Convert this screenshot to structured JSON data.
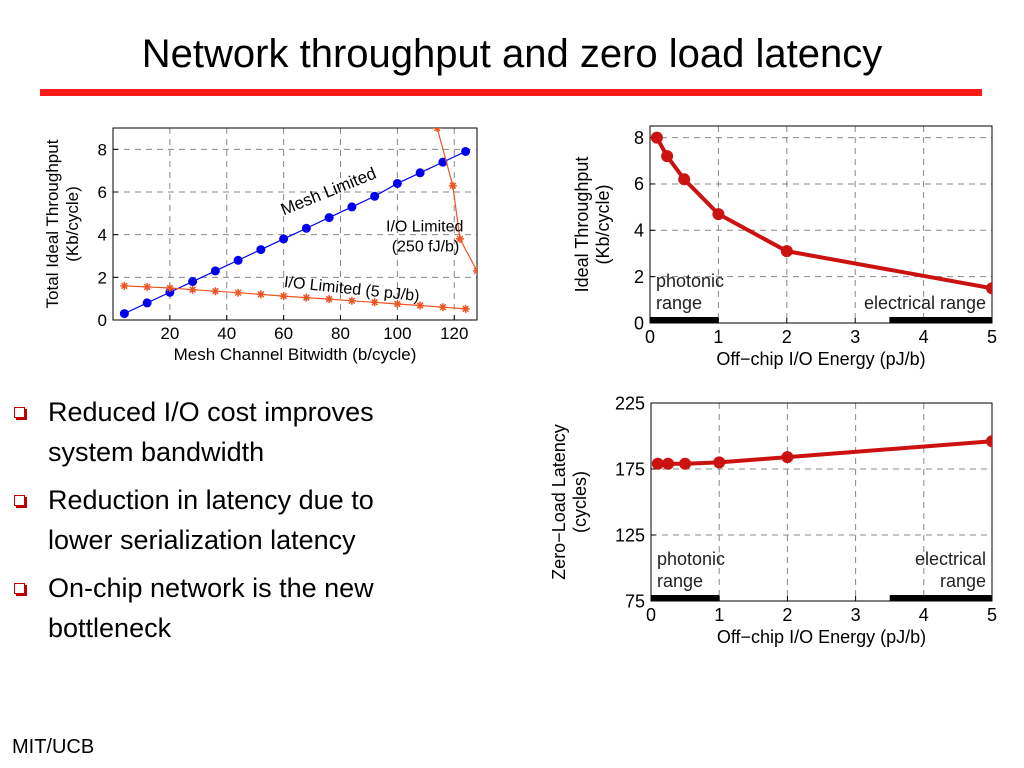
{
  "slide": {
    "title": "Network throughput and zero load latency",
    "footer": "MIT/UCB",
    "accent_color": "#ff1a1a"
  },
  "bullets": [
    {
      "icon": "hollow-square-bullet-icon",
      "text_lines": [
        "Reduced I/O cost improves",
        "system bandwidth"
      ]
    },
    {
      "icon": "hollow-square-bullet-icon",
      "text_lines": [
        "Reduction in latency due to",
        "lower serialization latency"
      ]
    },
    {
      "icon": "hollow-square-bullet-icon",
      "text_lines": [
        "On-chip network is the new",
        "bottleneck"
      ]
    }
  ],
  "chart_data": [
    {
      "id": "throughput-vs-bitwidth",
      "type": "line",
      "xlabel": "Mesh Channel Bitwidth (b/cycle)",
      "ylabel_lines": [
        "Total Ideal Throughput",
        "(Kb/cycle)"
      ],
      "xlim": [
        0,
        128
      ],
      "ylim": [
        0,
        9
      ],
      "xticks": [
        20,
        40,
        60,
        80,
        100,
        120
      ],
      "yticks": [
        0,
        2,
        4,
        6,
        8
      ],
      "grid": true,
      "series": [
        {
          "name": "Mesh Limited",
          "color": "#0000ee",
          "marker": "circle",
          "x": [
            4,
            12,
            20,
            28,
            36,
            44,
            52,
            60,
            68,
            76,
            84,
            92,
            100,
            108,
            116,
            124
          ],
          "y": [
            0.3,
            0.8,
            1.3,
            1.8,
            2.3,
            2.8,
            3.3,
            3.8,
            4.3,
            4.8,
            5.3,
            5.8,
            6.4,
            6.9,
            7.4,
            7.9
          ]
        },
        {
          "name": "I/O Limited (5 pJ/b)",
          "color": "#ee5522",
          "marker": "star",
          "x": [
            4,
            12,
            20,
            28,
            36,
            44,
            52,
            60,
            68,
            76,
            84,
            92,
            100,
            108,
            116,
            124
          ],
          "y": [
            1.6,
            1.55,
            1.5,
            1.42,
            1.35,
            1.28,
            1.2,
            1.12,
            1.05,
            0.98,
            0.9,
            0.83,
            0.75,
            0.68,
            0.6,
            0.52
          ]
        },
        {
          "name": "I/O Limited (250 fJ/b)",
          "color": "#ee5522",
          "marker": "star",
          "x": [
            114,
            119.5,
            122,
            128
          ],
          "y": [
            9,
            6.3,
            3.8,
            2.3
          ]
        }
      ],
      "annotations": [
        "Mesh Limited",
        "I/O Limited",
        "(250 fJ/b)",
        "I/O Limited (5 pJ/b)"
      ]
    },
    {
      "id": "throughput-vs-energy",
      "type": "line",
      "xlabel": "Off−chip I/O Energy (pJ/b)",
      "ylabel_lines": [
        "Ideal Throughput",
        "(Kb/cycle)"
      ],
      "xlim": [
        0,
        5
      ],
      "ylim": [
        0,
        8.5
      ],
      "xticks": [
        0,
        1,
        2,
        3,
        4,
        5
      ],
      "yticks": [
        0,
        2,
        4,
        6,
        8
      ],
      "grid": true,
      "series": [
        {
          "color": "#cc1111",
          "marker": "circle",
          "x": [
            0.1,
            0.25,
            0.5,
            1,
            2,
            5
          ],
          "y": [
            8.0,
            7.2,
            6.2,
            4.7,
            3.1,
            1.5
          ]
        }
      ],
      "ranges": [
        {
          "label_lines": [
            "photonic",
            "range"
          ],
          "x": [
            0,
            1
          ]
        },
        {
          "label_lines": [
            "electrical range"
          ],
          "x": [
            3.5,
            5
          ]
        }
      ]
    },
    {
      "id": "latency-vs-energy",
      "type": "line",
      "xlabel": "Off−chip I/O Energy (pJ/b)",
      "ylabel_lines": [
        "Zero−Load Latency",
        "(cycles)"
      ],
      "xlim": [
        0,
        5
      ],
      "ylim": [
        75,
        225
      ],
      "xticks": [
        0,
        1,
        2,
        3,
        4,
        5
      ],
      "yticks": [
        75,
        125,
        175,
        225
      ],
      "grid": true,
      "series": [
        {
          "color": "#cc1111",
          "marker": "circle",
          "x": [
            0.1,
            0.25,
            0.5,
            1,
            2,
            5
          ],
          "y": [
            179,
            179,
            179,
            180,
            184,
            196
          ]
        }
      ],
      "ranges": [
        {
          "label_lines": [
            "photonic",
            "range"
          ],
          "x": [
            0,
            1
          ]
        },
        {
          "label_lines": [
            "electrical",
            "range"
          ],
          "x": [
            3.5,
            5
          ]
        }
      ]
    }
  ]
}
